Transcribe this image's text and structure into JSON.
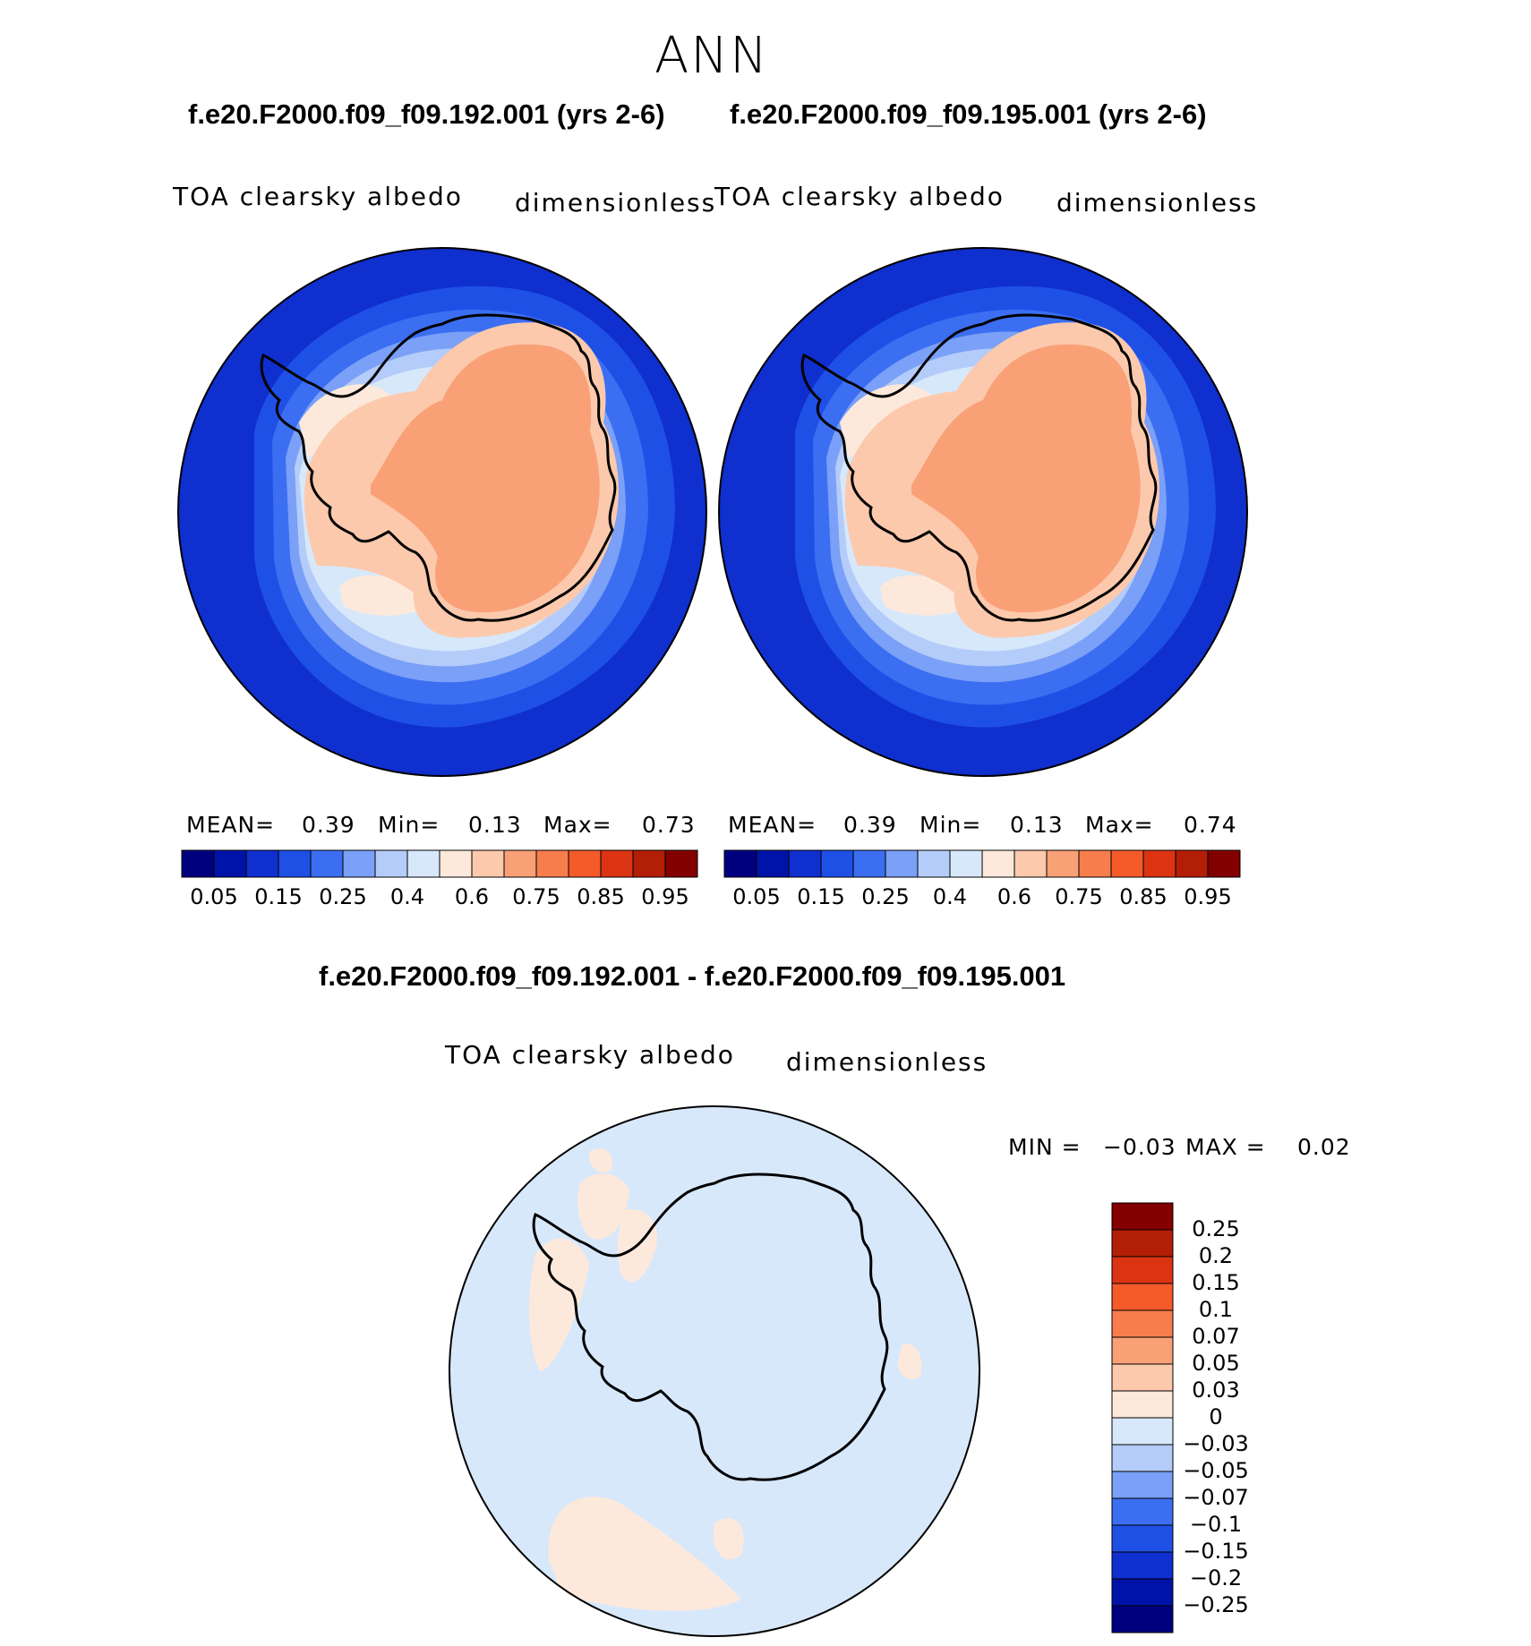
{
  "page": {
    "season": "ANN",
    "top_left_case": "f.e20.F2000.f09_f09.192.001 (yrs 2-6)",
    "top_right_case": "f.e20.F2000.f09_f09.195.001 (yrs 2-6)",
    "diff_title": "f.e20.F2000.f09_f09.192.001 - f.e20.F2000.f09_f09.195.001"
  },
  "panels": [
    {
      "id": "left",
      "variable": "TOA clearsky albedo",
      "units": "dimensionless",
      "stats": {
        "mean_label": "MEAN=",
        "mean": "0.39",
        "min_label": "Min=",
        "min": "0.13",
        "max_label": "Max=",
        "max": "0.73"
      }
    },
    {
      "id": "right",
      "variable": "TOA clearsky albedo",
      "units": "dimensionless",
      "stats": {
        "mean_label": "MEAN=",
        "mean": "0.39",
        "min_label": "Min=",
        "min": "0.13",
        "max_label": "Max=",
        "max": "0.74"
      }
    },
    {
      "id": "diff",
      "variable": "TOA clearsky albedo",
      "units": "dimensionless",
      "stats": {
        "min_label": "MIN =",
        "min": "−0.03",
        "max_label": "MAX =",
        "max": "0.02"
      }
    }
  ],
  "colorbar_h": {
    "colors": [
      "#00007f",
      "#0013a8",
      "#0f2fce",
      "#1f50e6",
      "#3c6ef2",
      "#7aa0f7",
      "#b4ccf9",
      "#d8e8fb",
      "#fde9db",
      "#fcc9ad",
      "#f9a077",
      "#f77d4c",
      "#f55a2a",
      "#dc3413",
      "#b31e07",
      "#830000"
    ],
    "tick_labels": [
      "0.05",
      "0.15",
      "0.25",
      "0.4",
      "0.6",
      "0.75",
      "0.85",
      "0.95"
    ]
  },
  "colorbar_v": {
    "colors_top_to_bottom": [
      "#830000",
      "#b31e07",
      "#dc3413",
      "#f55a2a",
      "#f77d4c",
      "#f9a077",
      "#fcc9ad",
      "#fde9db",
      "#d8e8fb",
      "#b4ccf9",
      "#7aa0f7",
      "#3c6ef2",
      "#1f50e6",
      "#0f2fce",
      "#0013a8",
      "#00007f"
    ],
    "tick_labels": [
      "0.25",
      "0.2",
      "0.15",
      "0.1",
      "0.07",
      "0.05",
      "0.03",
      "0",
      "−0.03",
      "−0.05",
      "−0.07",
      "−0.1",
      "−0.15",
      "−0.2",
      "−0.25"
    ]
  },
  "chart_data": [
    {
      "type": "heatmap",
      "title": "TOA clearsky albedo",
      "units": "dimensionless",
      "case": "f.e20.F2000.f09_f09.192.001 (yrs 2-6)",
      "projection": "south polar stereographic",
      "mean": 0.39,
      "min": 0.13,
      "max": 0.73,
      "levels": [
        0.05,
        0.1,
        0.15,
        0.2,
        0.25,
        0.3,
        0.4,
        0.5,
        0.6,
        0.7,
        0.75,
        0.8,
        0.85,
        0.9,
        0.95
      ]
    },
    {
      "type": "heatmap",
      "title": "TOA clearsky albedo",
      "units": "dimensionless",
      "case": "f.e20.F2000.f09_f09.195.001 (yrs 2-6)",
      "projection": "south polar stereographic",
      "mean": 0.39,
      "min": 0.13,
      "max": 0.74,
      "levels": [
        0.05,
        0.1,
        0.15,
        0.2,
        0.25,
        0.3,
        0.4,
        0.5,
        0.6,
        0.7,
        0.75,
        0.8,
        0.85,
        0.9,
        0.95
      ]
    },
    {
      "type": "heatmap",
      "title": "TOA clearsky albedo",
      "units": "dimensionless",
      "case": "f.e20.F2000.f09_f09.192.001 - f.e20.F2000.f09_f09.195.001",
      "projection": "south polar stereographic",
      "min": -0.03,
      "max": 0.02,
      "levels": [
        -0.25,
        -0.2,
        -0.15,
        -0.1,
        -0.07,
        -0.05,
        -0.03,
        0,
        0.03,
        0.05,
        0.07,
        0.1,
        0.15,
        0.2,
        0.25
      ]
    }
  ]
}
